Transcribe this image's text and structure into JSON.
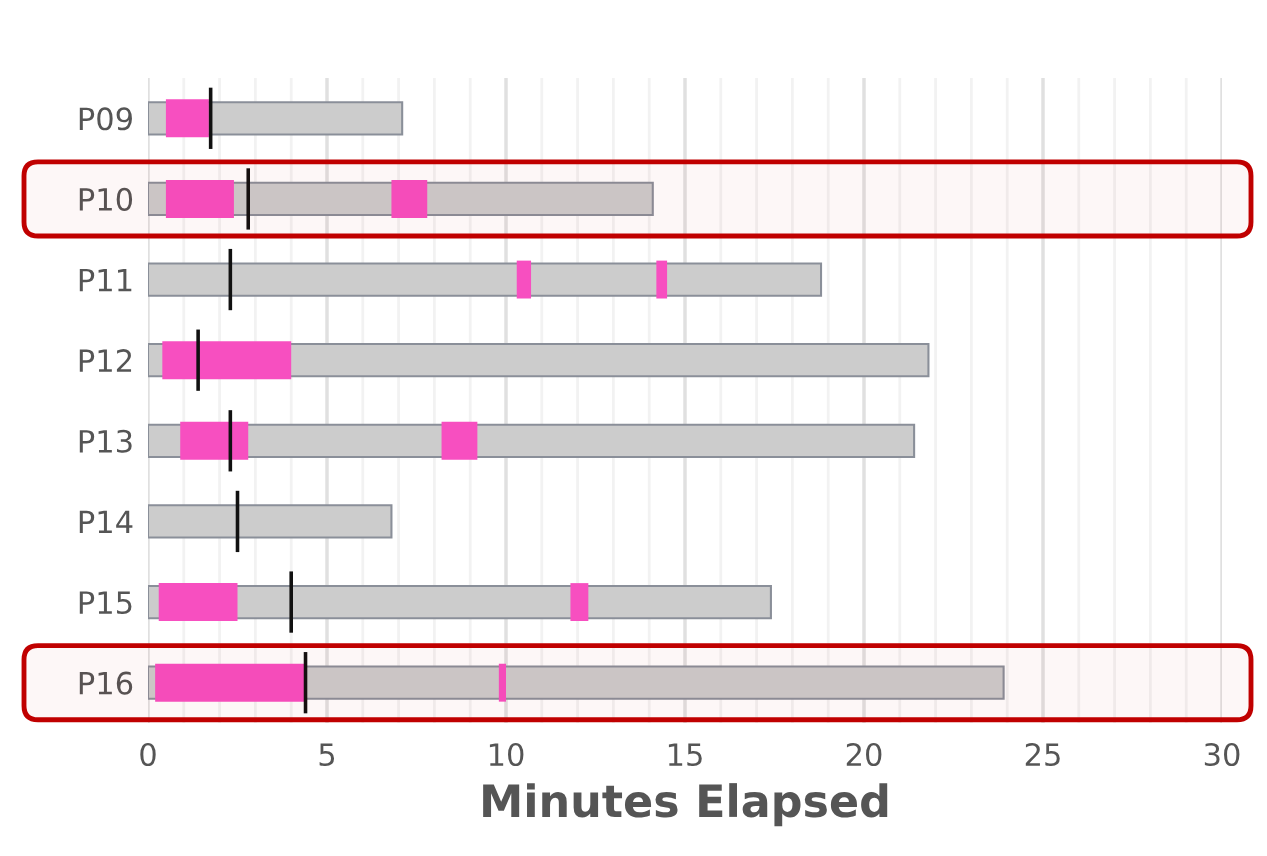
{
  "chart_data": {
    "type": "bar",
    "orientation": "horizontal",
    "xlabel": "Minutes Elapsed",
    "categories": [
      "P09",
      "P10",
      "P11",
      "P12",
      "P13",
      "P14",
      "P15",
      "P16"
    ],
    "series": [
      {
        "color": "#cccccc",
        "values": [
          7.1,
          14.1,
          18.8,
          21.8,
          21.4,
          6.8,
          17.4,
          23.9
        ]
      },
      {
        "color": "#f74fc0",
        "base": [
          0.5,
          0.5,
          10.3,
          0.4,
          0.9,
          null,
          0.3,
          0.2
        ],
        "values": [
          1.2,
          1.9,
          0.4,
          3.6,
          1.9,
          null,
          2.2,
          4.2
        ]
      },
      {
        "color": "#f74fc0",
        "base": [
          null,
          6.8,
          14.2,
          null,
          8.2,
          null,
          11.8,
          9.8
        ],
        "values": [
          null,
          1.0,
          0.3,
          null,
          1.0,
          null,
          0.5,
          0.2
        ]
      },
      {
        "color": "#111111",
        "base": [
          1.7,
          2.75,
          2.25,
          1.35,
          2.25,
          2.45,
          3.95,
          4.35
        ],
        "values": [
          0.1,
          0.1,
          0.1,
          0.1,
          0.1,
          0.1,
          0.1,
          0.1
        ]
      }
    ],
    "xlim": [
      0,
      30
    ],
    "xticks": [
      0,
      {
        "value": 1,
        "label": null
      },
      {
        "value": 2,
        "label": null
      },
      {
        "value": 3,
        "label": null
      },
      {
        "value": 4,
        "label": null
      },
      5,
      {
        "value": 6,
        "label": null
      },
      {
        "value": 7,
        "label": null
      },
      {
        "value": 8,
        "label": null
      },
      {
        "value": 9,
        "label": null
      },
      10,
      {
        "value": 11,
        "label": null
      },
      {
        "value": 12,
        "label": null
      },
      {
        "value": 13,
        "label": null
      },
      {
        "value": 14,
        "label": null
      },
      15,
      {
        "value": 16,
        "label": null
      },
      {
        "value": 17,
        "label": null
      },
      {
        "value": 18,
        "label": null
      },
      {
        "value": 19,
        "label": null
      },
      20,
      {
        "value": 21,
        "label": null
      },
      {
        "value": 22,
        "label": null
      },
      {
        "value": 23,
        "label": null
      },
      {
        "value": 24,
        "label": null
      },
      25,
      {
        "value": 26,
        "label": null
      },
      {
        "value": 27,
        "label": null
      },
      {
        "value": 28,
        "label": null
      },
      {
        "value": 29,
        "label": null
      },
      30
    ],
    "grid": "x",
    "bands": [
      {
        "axis": "y",
        "from": "P10",
        "to": "P10",
        "color": "#c00000"
      },
      {
        "axis": "y",
        "from": "P16",
        "to": "P16",
        "color": "#c00000"
      }
    ]
  }
}
